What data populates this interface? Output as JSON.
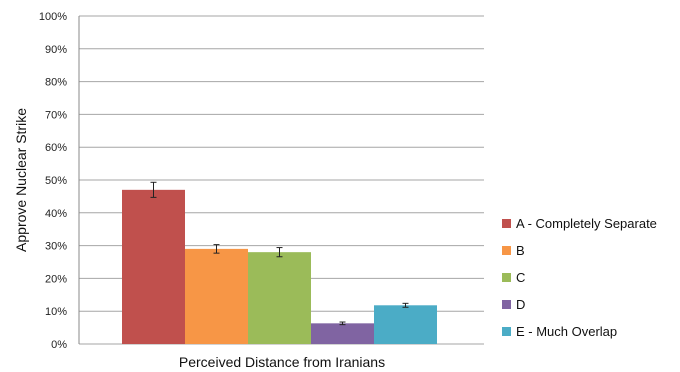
{
  "chart_data": {
    "type": "bar",
    "xlabel": "Perceived Distance from Iranians",
    "ylabel": "Approve Nuclear Strike",
    "ylim": [
      0,
      100
    ],
    "y_ticks": [
      "0%",
      "10%",
      "20%",
      "30%",
      "40%",
      "50%",
      "60%",
      "70%",
      "80%",
      "90%",
      "100%"
    ],
    "grid": true,
    "legend_position": "right",
    "series": [
      {
        "name": "A - Completely Separate",
        "value": 47,
        "error": 2.3,
        "color": "#c0504d"
      },
      {
        "name": "B",
        "value": 29,
        "error": 1.3,
        "color": "#f79646"
      },
      {
        "name": "C",
        "value": 28,
        "error": 1.4,
        "color": "#9bbb59"
      },
      {
        "name": "D",
        "value": 6.3,
        "error": 0.4,
        "color": "#8064a2"
      },
      {
        "name": "E - Much Overlap",
        "value": 11.8,
        "error": 0.6,
        "color": "#4bacc6"
      }
    ]
  }
}
